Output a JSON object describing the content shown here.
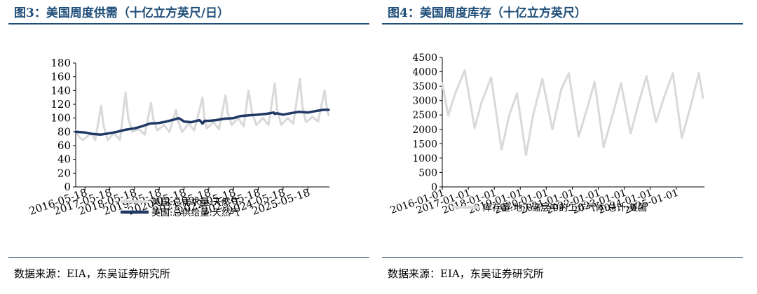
{
  "chart_data": [
    {
      "type": "line",
      "title": "图3：美国周度供需（十亿立方英尺/日）",
      "source": "数据来源：EIA，东吴证券研究所",
      "ylim": [
        0,
        180
      ],
      "yticks": [
        0,
        20,
        40,
        60,
        80,
        100,
        120,
        140,
        160,
        180
      ],
      "xlim": [
        "2016-01-01",
        "2026-04-01"
      ],
      "xticks": [
        "2016-05-18",
        "2017-05-18",
        "2018-05-18",
        "2019-05-18",
        "2020-05-18",
        "2021-05-18",
        "2022-05-18",
        "2023-05-18",
        "2024-05-18",
        "2025-05-18"
      ],
      "legend_position": "bottom",
      "grid": false,
      "series": [
        {
          "name": "美国:总需求量:天然气",
          "color": "#d9d9d9",
          "points": [
            [
              "2016-01-01",
              82
            ],
            [
              "2016-02-15",
              73
            ],
            [
              "2016-04-15",
              68
            ],
            [
              "2016-07-01",
              74
            ],
            [
              "2016-08-15",
              78
            ],
            [
              "2016-10-15",
              68
            ],
            [
              "2017-01-10",
              118
            ],
            [
              "2017-02-15",
              90
            ],
            [
              "2017-04-15",
              68
            ],
            [
              "2017-07-20",
              78
            ],
            [
              "2017-10-15",
              68
            ],
            [
              "2018-01-05",
              137
            ],
            [
              "2018-02-15",
              100
            ],
            [
              "2018-04-15",
              80
            ],
            [
              "2018-07-20",
              84
            ],
            [
              "2018-10-15",
              76
            ],
            [
              "2019-01-15",
              122
            ],
            [
              "2019-02-20",
              98
            ],
            [
              "2019-04-20",
              82
            ],
            [
              "2019-07-25",
              90
            ],
            [
              "2019-10-15",
              80
            ],
            [
              "2020-01-20",
              112
            ],
            [
              "2020-02-20",
              96
            ],
            [
              "2020-04-20",
              80
            ],
            [
              "2020-07-25",
              92
            ],
            [
              "2020-10-15",
              82
            ],
            [
              "2021-02-15",
              130
            ],
            [
              "2021-03-15",
              98
            ],
            [
              "2021-04-20",
              85
            ],
            [
              "2021-07-25",
              94
            ],
            [
              "2021-10-15",
              84
            ],
            [
              "2022-01-20",
              133
            ],
            [
              "2022-02-20",
              108
            ],
            [
              "2022-04-20",
              90
            ],
            [
              "2022-07-25",
              100
            ],
            [
              "2022-10-15",
              88
            ],
            [
              "2022-12-24",
              140
            ],
            [
              "2023-02-15",
              108
            ],
            [
              "2023-04-20",
              90
            ],
            [
              "2023-07-25",
              100
            ],
            [
              "2023-10-15",
              90
            ],
            [
              "2024-01-16",
              150
            ],
            [
              "2024-02-20",
              112
            ],
            [
              "2024-04-20",
              90
            ],
            [
              "2024-07-25",
              100
            ],
            [
              "2024-10-15",
              92
            ],
            [
              "2025-01-21",
              157
            ],
            [
              "2025-02-25",
              118
            ],
            [
              "2025-04-20",
              94
            ],
            [
              "2025-07-25",
              102
            ],
            [
              "2025-10-15",
              95
            ],
            [
              "2026-01-20",
              140
            ],
            [
              "2026-03-01",
              110
            ],
            [
              "2026-03-20",
              104
            ]
          ]
        },
        {
          "name": "美国:总供给量:天然气",
          "color": "#1f3864",
          "points": [
            [
              "2016-01-01",
              80
            ],
            [
              "2016-05-18",
              79
            ],
            [
              "2016-09-01",
              77
            ],
            [
              "2017-01-01",
              76
            ],
            [
              "2017-05-18",
              78
            ],
            [
              "2017-09-01",
              80
            ],
            [
              "2018-01-01",
              83
            ],
            [
              "2018-05-18",
              85
            ],
            [
              "2018-09-01",
              88
            ],
            [
              "2019-01-01",
              92
            ],
            [
              "2019-05-18",
              93
            ],
            [
              "2019-09-01",
              95
            ],
            [
              "2020-01-01",
              98
            ],
            [
              "2020-03-01",
              100
            ],
            [
              "2020-05-18",
              95
            ],
            [
              "2020-09-01",
              94
            ],
            [
              "2021-01-01",
              97
            ],
            [
              "2021-02-15",
              92
            ],
            [
              "2021-03-15",
              96
            ],
            [
              "2021-05-18",
              96
            ],
            [
              "2021-09-01",
              97
            ],
            [
              "2022-01-01",
              99
            ],
            [
              "2022-05-18",
              100
            ],
            [
              "2022-09-01",
              103
            ],
            [
              "2023-01-01",
              104
            ],
            [
              "2023-05-18",
              105
            ],
            [
              "2023-09-01",
              106
            ],
            [
              "2024-01-01",
              108
            ],
            [
              "2024-01-16",
              106
            ],
            [
              "2024-02-15",
              107
            ],
            [
              "2024-05-18",
              105
            ],
            [
              "2024-09-01",
              107
            ],
            [
              "2025-01-01",
              109
            ],
            [
              "2025-05-18",
              108
            ],
            [
              "2025-09-01",
              110
            ],
            [
              "2026-01-01",
              112
            ],
            [
              "2026-03-20",
              112
            ]
          ]
        }
      ]
    },
    {
      "type": "line",
      "title": "图4：美国周度库存（十亿立方英尺）",
      "source": "数据来源：EIA，东吴证券研究所",
      "ylim": [
        0,
        4500
      ],
      "yticks": [
        0,
        500,
        1000,
        1500,
        2000,
        2500,
        3000,
        3500,
        4000,
        4500
      ],
      "xlim": [
        "2016-01-01",
        "2026-02-01"
      ],
      "xticks": [
        "2016-01-01",
        "2017-01-01",
        "2018-01-01",
        "2019-01-01",
        "2020-01-01",
        "2021-01-01",
        "2022-01-01",
        "2023-01-01",
        "2024-01-01",
        "2025-01-01"
      ],
      "legend_position": "bottom",
      "grid": false,
      "series": [
        {
          "name": "库存量:地下储层中的工作气体:总计:美国",
          "color": "#d9d9d9",
          "points": [
            [
              "2016-01-01",
              3600
            ],
            [
              "2016-03-25",
              2480
            ],
            [
              "2016-07-01",
              3250
            ],
            [
              "2016-11-11",
              4050
            ],
            [
              "2017-03-31",
              2050
            ],
            [
              "2017-07-01",
              2900
            ],
            [
              "2017-11-17",
              3800
            ],
            [
              "2018-04-13",
              1300
            ],
            [
              "2018-08-01",
              2500
            ],
            [
              "2018-11-16",
              3250
            ],
            [
              "2019-03-22",
              1100
            ],
            [
              "2019-07-01",
              2500
            ],
            [
              "2019-11-08",
              3750
            ],
            [
              "2020-03-27",
              2000
            ],
            [
              "2020-08-01",
              3400
            ],
            [
              "2020-11-13",
              3950
            ],
            [
              "2021-03-31",
              1750
            ],
            [
              "2021-08-01",
              2750
            ],
            [
              "2021-11-10",
              3650
            ],
            [
              "2022-03-18",
              1380
            ],
            [
              "2022-08-01",
              2600
            ],
            [
              "2022-11-18",
              3600
            ],
            [
              "2023-03-31",
              1850
            ],
            [
              "2023-08-01",
              3000
            ],
            [
              "2023-11-10",
              3850
            ],
            [
              "2024-03-22",
              2250
            ],
            [
              "2024-08-01",
              3250
            ],
            [
              "2024-11-15",
              3950
            ],
            [
              "2025-03-21",
              1700
            ],
            [
              "2025-08-01",
              2900
            ],
            [
              "2025-11-14",
              3950
            ],
            [
              "2026-01-10",
              3100
            ]
          ]
        }
      ]
    }
  ]
}
